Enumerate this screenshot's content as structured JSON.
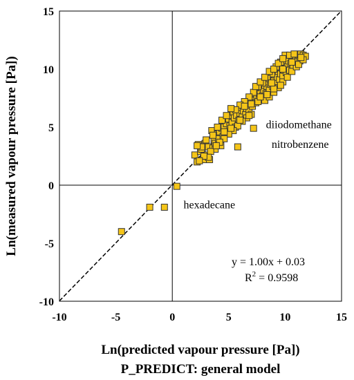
{
  "chart_data": {
    "type": "scatter",
    "xlabel": "Ln(predicted vapour pressure [Pa])",
    "subtitle": "P_PREDICT: general model",
    "ylabel": "Ln(measured vapour pressure [Pa])",
    "xlim": [
      -10,
      15
    ],
    "ylim": [
      -10,
      15
    ],
    "xticks": [
      "-10",
      "-5",
      "0",
      "5",
      "10",
      "15"
    ],
    "yticks": [
      "-10",
      "-5",
      "0",
      "5",
      "10",
      "15"
    ],
    "grid": false,
    "zero_lines": true,
    "marker_color": "#f5c518",
    "marker_edge": "#333333",
    "trendline": {
      "slope": 1.0,
      "intercept": 0.03,
      "style": "dashed"
    },
    "equation": "y = 1.00x + 0.03",
    "r2_label": "R",
    "r2_sup": "2",
    "r2_value": " = 0.9598",
    "annotations": [
      {
        "text": "diiodomethane",
        "x": 8.3,
        "y": 4.9
      },
      {
        "text": "nitrobenzene",
        "x": 8.8,
        "y": 3.2
      },
      {
        "text": "hexadecane",
        "x": 1.0,
        "y": -2.0
      }
    ],
    "points": [
      [
        -4.5,
        -4.0
      ],
      [
        -2.0,
        -1.9
      ],
      [
        -0.7,
        -1.9
      ],
      [
        0.4,
        -0.1
      ],
      [
        5.8,
        3.3
      ],
      [
        7.2,
        4.9
      ],
      [
        2.0,
        2.6
      ],
      [
        2.2,
        2.0
      ],
      [
        2.3,
        3.5
      ],
      [
        2.5,
        2.9
      ],
      [
        2.6,
        3.1
      ],
      [
        2.8,
        2.2
      ],
      [
        2.9,
        3.6
      ],
      [
        3.1,
        2.6
      ],
      [
        3.2,
        3.3
      ],
      [
        3.3,
        2.2
      ],
      [
        3.5,
        4.7
      ],
      [
        3.6,
        3.2
      ],
      [
        3.7,
        3.9
      ],
      [
        3.8,
        3.6
      ],
      [
        4.0,
        4.4
      ],
      [
        4.1,
        4.0
      ],
      [
        4.2,
        4.6
      ],
      [
        4.3,
        3.4
      ],
      [
        4.4,
        4.9
      ],
      [
        4.5,
        4.2
      ],
      [
        4.6,
        5.0
      ],
      [
        4.8,
        5.3
      ],
      [
        4.9,
        4.6
      ],
      [
        5.0,
        5.7
      ],
      [
        5.1,
        5.1
      ],
      [
        5.2,
        6.0
      ],
      [
        5.3,
        5.4
      ],
      [
        5.4,
        6.3
      ],
      [
        5.5,
        5.8
      ],
      [
        5.6,
        5.0
      ],
      [
        5.7,
        6.0
      ],
      [
        5.8,
        6.5
      ],
      [
        5.9,
        5.6
      ],
      [
        6.0,
        6.2
      ],
      [
        6.1,
        6.7
      ],
      [
        6.2,
        5.9
      ],
      [
        6.3,
        6.4
      ],
      [
        6.4,
        7.0
      ],
      [
        6.5,
        6.1
      ],
      [
        6.6,
        6.6
      ],
      [
        6.7,
        7.2
      ],
      [
        6.8,
        6.4
      ],
      [
        6.9,
        6.9
      ],
      [
        7.0,
        7.5
      ],
      [
        7.1,
        6.8
      ],
      [
        7.2,
        7.3
      ],
      [
        7.3,
        7.9
      ],
      [
        7.4,
        7.1
      ],
      [
        7.5,
        7.6
      ],
      [
        7.6,
        8.1
      ],
      [
        7.7,
        7.4
      ],
      [
        7.8,
        7.9
      ],
      [
        7.9,
        8.4
      ],
      [
        8.0,
        7.7
      ],
      [
        8.1,
        8.2
      ],
      [
        8.2,
        8.6
      ],
      [
        8.3,
        7.9
      ],
      [
        8.4,
        8.5
      ],
      [
        8.5,
        8.9
      ],
      [
        8.6,
        8.2
      ],
      [
        8.7,
        8.7
      ],
      [
        8.8,
        9.1
      ],
      [
        8.9,
        8.5
      ],
      [
        9.0,
        9.0
      ],
      [
        9.1,
        9.5
      ],
      [
        9.2,
        8.8
      ],
      [
        9.3,
        9.3
      ],
      [
        9.4,
        9.8
      ],
      [
        9.5,
        9.1
      ],
      [
        9.6,
        9.6
      ],
      [
        9.7,
        10.1
      ],
      [
        9.8,
        9.4
      ],
      [
        9.9,
        9.9
      ],
      [
        10.0,
        10.4
      ],
      [
        10.1,
        9.7
      ],
      [
        10.2,
        10.2
      ],
      [
        10.3,
        10.7
      ],
      [
        10.4,
        9.9
      ],
      [
        10.5,
        10.5
      ],
      [
        10.6,
        11.0
      ],
      [
        10.7,
        10.3
      ],
      [
        10.8,
        10.8
      ],
      [
        10.9,
        11.1
      ],
      [
        11.0,
        10.5
      ],
      [
        11.1,
        10.9
      ],
      [
        11.2,
        11.2
      ],
      [
        11.3,
        10.7
      ],
      [
        11.4,
        11.3
      ],
      [
        11.5,
        10.9
      ],
      [
        11.6,
        11.2
      ],
      [
        11.8,
        11.1
      ],
      [
        10.0,
        11.2
      ],
      [
        9.6,
        10.6
      ],
      [
        9.2,
        10.2
      ],
      [
        8.8,
        9.6
      ],
      [
        8.4,
        9.2
      ],
      [
        8.0,
        8.8
      ],
      [
        7.6,
        8.5
      ],
      [
        7.2,
        8.0
      ],
      [
        6.8,
        7.6
      ],
      [
        6.4,
        7.2
      ],
      [
        6.0,
        6.9
      ],
      [
        5.6,
        6.5
      ],
      [
        8.2,
        7.3
      ],
      [
        8.6,
        7.6
      ],
      [
        9.0,
        8.0
      ],
      [
        9.4,
        8.4
      ],
      [
        9.8,
        8.9
      ],
      [
        10.2,
        9.3
      ],
      [
        10.6,
        9.8
      ],
      [
        11.0,
        10.2
      ],
      [
        7.0,
        6.1
      ],
      [
        6.6,
        5.8
      ],
      [
        6.2,
        5.5
      ],
      [
        5.8,
        5.1
      ],
      [
        5.4,
        4.7
      ],
      [
        5.0,
        4.4
      ],
      [
        4.6,
        4.0
      ],
      [
        4.2,
        3.7
      ],
      [
        3.8,
        3.1
      ],
      [
        3.4,
        2.9
      ],
      [
        3.0,
        3.9
      ],
      [
        2.6,
        3.3
      ],
      [
        2.2,
        3.4
      ],
      [
        3.6,
        4.3
      ],
      [
        4.0,
        5.0
      ],
      [
        4.4,
        5.6
      ],
      [
        4.8,
        6.0
      ],
      [
        5.2,
        6.6
      ],
      [
        7.4,
        8.5
      ],
      [
        7.8,
        8.9
      ],
      [
        8.2,
        9.3
      ],
      [
        8.6,
        9.8
      ],
      [
        9.0,
        10.0
      ],
      [
        9.4,
        10.5
      ],
      [
        9.8,
        10.9
      ],
      [
        10.4,
        11.2
      ],
      [
        10.8,
        11.3
      ],
      [
        11.2,
        10.4
      ],
      [
        11.6,
        10.8
      ],
      [
        9.6,
        8.6
      ],
      [
        9.0,
        8.3
      ],
      [
        8.4,
        7.8
      ],
      [
        7.6,
        7.2
      ],
      [
        6.8,
        6.0
      ],
      [
        6.0,
        5.6
      ],
      [
        5.2,
        4.9
      ],
      [
        4.6,
        4.6
      ],
      [
        3.9,
        3.4
      ],
      [
        3.2,
        2.4
      ],
      [
        2.8,
        2.5
      ],
      [
        2.4,
        2.1
      ],
      [
        6.4,
        6.8
      ],
      [
        7.0,
        7.0
      ],
      [
        7.8,
        7.6
      ],
      [
        8.8,
        8.8
      ],
      [
        9.8,
        10.0
      ],
      [
        10.6,
        10.6
      ],
      [
        11.4,
        11.0
      ]
    ]
  }
}
